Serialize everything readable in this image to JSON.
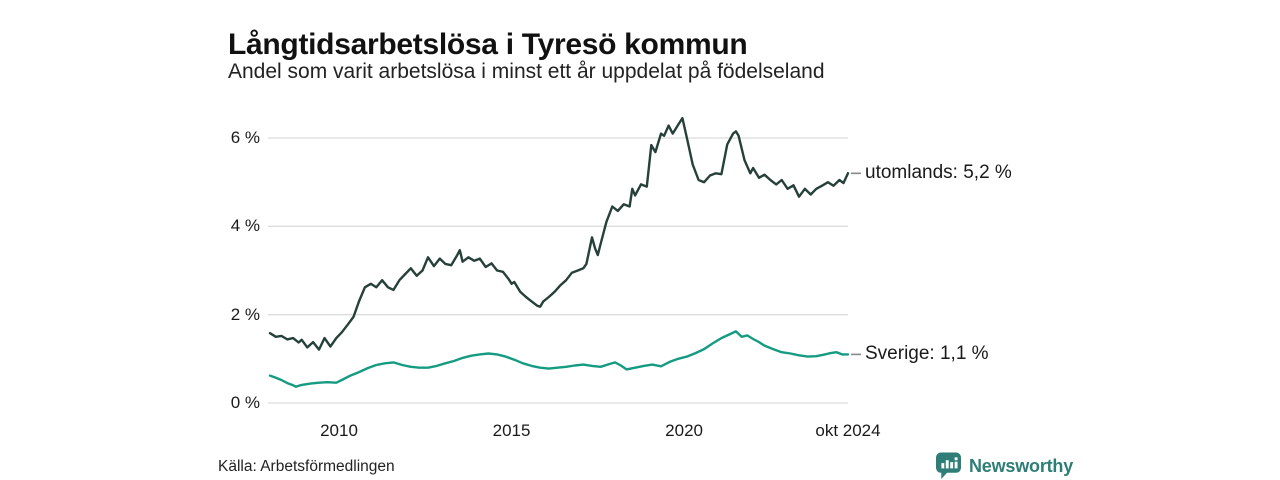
{
  "header": {
    "title": "Långtidsarbetslösa i Tyresö kommun",
    "subtitle": "Andel som varit arbetslösa i minst ett år uppdelat på födelseland"
  },
  "footer": {
    "source": "Källa: Arbetsförmedlingen",
    "brand_name": "Newsworthy",
    "brand_color": "#2e7e77"
  },
  "chart_data": {
    "type": "line",
    "title": "Långtidsarbetslösa i Tyresö kommun",
    "subtitle": "Andel som varit arbetslösa i minst ett år uppdelat på födelseland",
    "xlabel": "",
    "ylabel": "",
    "x_domain": [
      2008.0,
      2024.75
    ],
    "y_domain": [
      0,
      6
    ],
    "grid": true,
    "grid_color": "#dcdcdc",
    "connector_color": "#888888",
    "y_ticks": [
      {
        "label": "0 %",
        "value": 0
      },
      {
        "label": "2 %",
        "value": 2
      },
      {
        "label": "4 %",
        "value": 4
      },
      {
        "label": "6 %",
        "value": 6
      }
    ],
    "x_ticks": [
      {
        "label": "2010",
        "year": 2010
      },
      {
        "label": "2015",
        "year": 2015
      },
      {
        "label": "2020",
        "year": 2020
      },
      {
        "label": "okt 2024",
        "year": 2024.75
      }
    ],
    "series": [
      {
        "name": "utomlands",
        "label": "utomlands: 5,2 %",
        "latest_value": 5.2,
        "color": "#26403a",
        "points": [
          [
            2008.0,
            1.58
          ],
          [
            2008.17,
            1.5
          ],
          [
            2008.33,
            1.52
          ],
          [
            2008.5,
            1.44
          ],
          [
            2008.67,
            1.47
          ],
          [
            2008.83,
            1.37
          ],
          [
            2008.92,
            1.43
          ],
          [
            2009.08,
            1.26
          ],
          [
            2009.25,
            1.38
          ],
          [
            2009.42,
            1.21
          ],
          [
            2009.58,
            1.47
          ],
          [
            2009.75,
            1.28
          ],
          [
            2009.92,
            1.47
          ],
          [
            2010.08,
            1.6
          ],
          [
            2010.25,
            1.77
          ],
          [
            2010.42,
            1.95
          ],
          [
            2010.58,
            2.3
          ],
          [
            2010.75,
            2.62
          ],
          [
            2010.92,
            2.7
          ],
          [
            2011.08,
            2.62
          ],
          [
            2011.25,
            2.78
          ],
          [
            2011.42,
            2.62
          ],
          [
            2011.58,
            2.56
          ],
          [
            2011.75,
            2.78
          ],
          [
            2011.92,
            2.92
          ],
          [
            2012.08,
            3.05
          ],
          [
            2012.25,
            2.88
          ],
          [
            2012.42,
            3.0
          ],
          [
            2012.58,
            3.3
          ],
          [
            2012.75,
            3.1
          ],
          [
            2012.92,
            3.27
          ],
          [
            2013.08,
            3.15
          ],
          [
            2013.25,
            3.12
          ],
          [
            2013.42,
            3.34
          ],
          [
            2013.5,
            3.46
          ],
          [
            2013.58,
            3.2
          ],
          [
            2013.75,
            3.3
          ],
          [
            2013.92,
            3.22
          ],
          [
            2014.08,
            3.27
          ],
          [
            2014.25,
            3.08
          ],
          [
            2014.42,
            3.16
          ],
          [
            2014.58,
            3.0
          ],
          [
            2014.75,
            2.97
          ],
          [
            2014.92,
            2.8
          ],
          [
            2015.0,
            2.7
          ],
          [
            2015.08,
            2.74
          ],
          [
            2015.25,
            2.52
          ],
          [
            2015.42,
            2.4
          ],
          [
            2015.58,
            2.3
          ],
          [
            2015.75,
            2.2
          ],
          [
            2015.83,
            2.18
          ],
          [
            2015.92,
            2.3
          ],
          [
            2016.08,
            2.4
          ],
          [
            2016.25,
            2.52
          ],
          [
            2016.42,
            2.67
          ],
          [
            2016.58,
            2.78
          ],
          [
            2016.75,
            2.95
          ],
          [
            2016.92,
            3.0
          ],
          [
            2017.08,
            3.05
          ],
          [
            2017.17,
            3.15
          ],
          [
            2017.33,
            3.75
          ],
          [
            2017.42,
            3.5
          ],
          [
            2017.5,
            3.35
          ],
          [
            2017.58,
            3.6
          ],
          [
            2017.75,
            4.1
          ],
          [
            2017.92,
            4.45
          ],
          [
            2018.08,
            4.35
          ],
          [
            2018.25,
            4.5
          ],
          [
            2018.42,
            4.45
          ],
          [
            2018.5,
            4.85
          ],
          [
            2018.58,
            4.7
          ],
          [
            2018.75,
            4.95
          ],
          [
            2018.92,
            4.9
          ],
          [
            2019.05,
            5.84
          ],
          [
            2019.17,
            5.68
          ],
          [
            2019.33,
            6.1
          ],
          [
            2019.42,
            6.05
          ],
          [
            2019.55,
            6.28
          ],
          [
            2019.67,
            6.1
          ],
          [
            2019.83,
            6.3
          ],
          [
            2019.95,
            6.45
          ],
          [
            2020.08,
            6.0
          ],
          [
            2020.25,
            5.4
          ],
          [
            2020.42,
            5.05
          ],
          [
            2020.58,
            5.0
          ],
          [
            2020.75,
            5.15
          ],
          [
            2020.92,
            5.2
          ],
          [
            2021.08,
            5.18
          ],
          [
            2021.25,
            5.85
          ],
          [
            2021.42,
            6.1
          ],
          [
            2021.5,
            6.15
          ],
          [
            2021.58,
            6.05
          ],
          [
            2021.75,
            5.5
          ],
          [
            2021.92,
            5.2
          ],
          [
            2022.0,
            5.32
          ],
          [
            2022.17,
            5.1
          ],
          [
            2022.33,
            5.17
          ],
          [
            2022.5,
            5.05
          ],
          [
            2022.67,
            4.95
          ],
          [
            2022.83,
            5.05
          ],
          [
            2023.0,
            4.85
          ],
          [
            2023.17,
            4.93
          ],
          [
            2023.33,
            4.67
          ],
          [
            2023.5,
            4.85
          ],
          [
            2023.67,
            4.72
          ],
          [
            2023.83,
            4.85
          ],
          [
            2024.0,
            4.92
          ],
          [
            2024.17,
            5.0
          ],
          [
            2024.33,
            4.92
          ],
          [
            2024.5,
            5.05
          ],
          [
            2024.62,
            4.98
          ],
          [
            2024.75,
            5.2
          ]
        ]
      },
      {
        "name": "Sverige",
        "label": "Sverige: 1,1 %",
        "latest_value": 1.1,
        "color": "#159b82",
        "points": [
          [
            2008.0,
            0.62
          ],
          [
            2008.17,
            0.57
          ],
          [
            2008.33,
            0.52
          ],
          [
            2008.5,
            0.45
          ],
          [
            2008.67,
            0.4
          ],
          [
            2008.75,
            0.37
          ],
          [
            2008.92,
            0.41
          ],
          [
            2009.17,
            0.44
          ],
          [
            2009.42,
            0.46
          ],
          [
            2009.67,
            0.47
          ],
          [
            2009.92,
            0.46
          ],
          [
            2010.08,
            0.52
          ],
          [
            2010.33,
            0.62
          ],
          [
            2010.58,
            0.7
          ],
          [
            2010.83,
            0.79
          ],
          [
            2011.08,
            0.86
          ],
          [
            2011.33,
            0.9
          ],
          [
            2011.58,
            0.92
          ],
          [
            2011.83,
            0.86
          ],
          [
            2012.08,
            0.82
          ],
          [
            2012.33,
            0.8
          ],
          [
            2012.58,
            0.8
          ],
          [
            2012.83,
            0.84
          ],
          [
            2013.08,
            0.9
          ],
          [
            2013.33,
            0.95
          ],
          [
            2013.58,
            1.02
          ],
          [
            2013.83,
            1.07
          ],
          [
            2014.08,
            1.1
          ],
          [
            2014.33,
            1.12
          ],
          [
            2014.58,
            1.1
          ],
          [
            2014.83,
            1.05
          ],
          [
            2015.08,
            0.98
          ],
          [
            2015.33,
            0.9
          ],
          [
            2015.58,
            0.84
          ],
          [
            2015.83,
            0.8
          ],
          [
            2016.08,
            0.78
          ],
          [
            2016.33,
            0.8
          ],
          [
            2016.58,
            0.82
          ],
          [
            2016.83,
            0.85
          ],
          [
            2017.08,
            0.87
          ],
          [
            2017.33,
            0.84
          ],
          [
            2017.58,
            0.82
          ],
          [
            2017.83,
            0.88
          ],
          [
            2018.0,
            0.92
          ],
          [
            2018.17,
            0.85
          ],
          [
            2018.33,
            0.76
          ],
          [
            2018.58,
            0.8
          ],
          [
            2018.83,
            0.84
          ],
          [
            2019.08,
            0.87
          ],
          [
            2019.33,
            0.83
          ],
          [
            2019.58,
            0.93
          ],
          [
            2019.83,
            1.0
          ],
          [
            2020.08,
            1.05
          ],
          [
            2020.33,
            1.13
          ],
          [
            2020.58,
            1.22
          ],
          [
            2020.83,
            1.35
          ],
          [
            2021.08,
            1.47
          ],
          [
            2021.33,
            1.56
          ],
          [
            2021.5,
            1.62
          ],
          [
            2021.67,
            1.5
          ],
          [
            2021.83,
            1.53
          ],
          [
            2022.0,
            1.45
          ],
          [
            2022.17,
            1.38
          ],
          [
            2022.33,
            1.3
          ],
          [
            2022.58,
            1.22
          ],
          [
            2022.83,
            1.15
          ],
          [
            2023.08,
            1.12
          ],
          [
            2023.33,
            1.08
          ],
          [
            2023.58,
            1.05
          ],
          [
            2023.83,
            1.06
          ],
          [
            2024.08,
            1.1
          ],
          [
            2024.25,
            1.13
          ],
          [
            2024.42,
            1.15
          ],
          [
            2024.58,
            1.1
          ],
          [
            2024.75,
            1.1
          ]
        ]
      }
    ],
    "legend_position": "right-of-line-ends",
    "source": "Källa: Arbetsförmedlingen"
  }
}
